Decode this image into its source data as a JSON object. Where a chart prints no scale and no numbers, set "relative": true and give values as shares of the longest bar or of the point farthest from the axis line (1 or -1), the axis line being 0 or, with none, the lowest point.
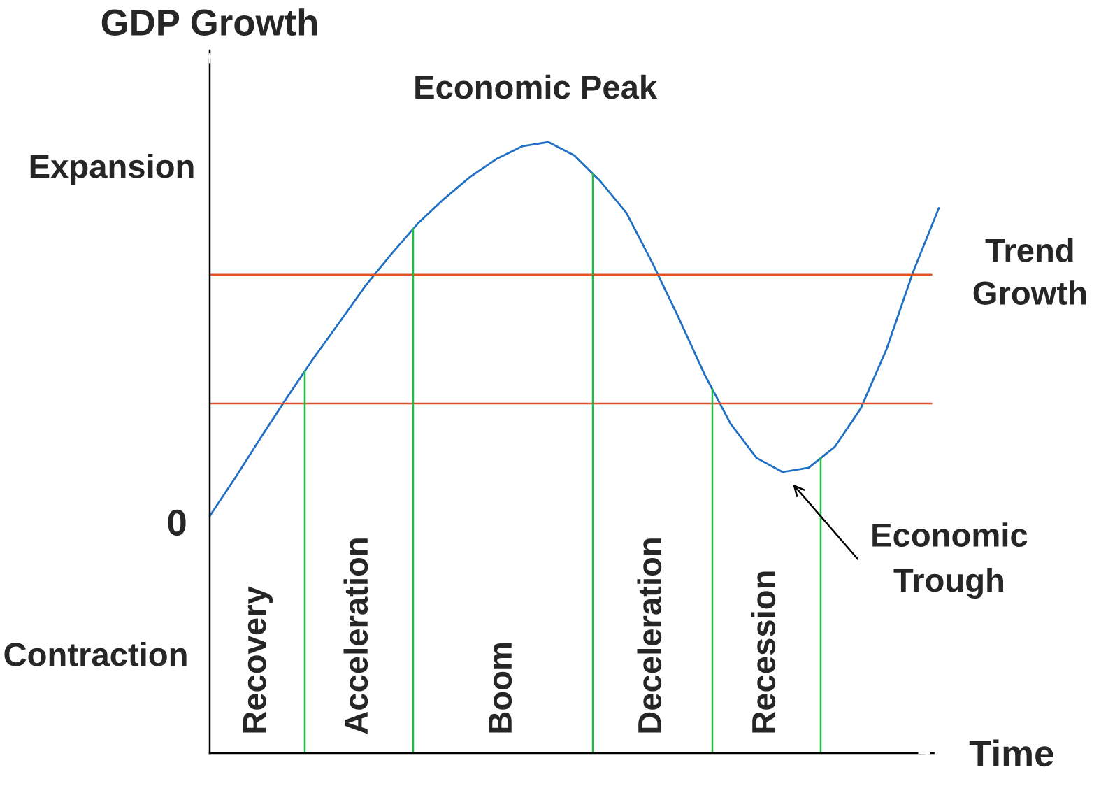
{
  "chart_data": {
    "type": "line",
    "relative": true,
    "xlabel": "Time",
    "ylabel": "GDP Growth",
    "categories": [
      null,
      null,
      null,
      null,
      null,
      null,
      null,
      null,
      null,
      null,
      null,
      null,
      null,
      null,
      null,
      null,
      null,
      null,
      null,
      null,
      null,
      null,
      null,
      null,
      null,
      null,
      null,
      null,
      null
    ],
    "marker": "none",
    "line_style": "solid",
    "series": [
      {
        "color": "#1f6fc4",
        "values": [
          0.388,
          0.452,
          0.519,
          0.584,
          0.647,
          0.706,
          0.766,
          0.818,
          0.867,
          0.907,
          0.943,
          0.972,
          0.993,
          1.0,
          0.978,
          0.936,
          0.884,
          0.802,
          0.713,
          0.62,
          0.539,
          0.483,
          0.46,
          0.467,
          0.501,
          0.564,
          0.662,
          0.786,
          0.892
        ]
      }
    ],
    "ref_lines": [
      {
        "axis": "y",
        "value": 0.783,
        "label": "Trend\nGrowth",
        "color": "#e2541f"
      },
      {
        "axis": "y",
        "value": 0.572,
        "label": null,
        "color": "#e2541f"
      }
    ],
    "annotations": [
      "Economic Peak",
      "Economic\nTrough",
      "0",
      "Expansion",
      "Contraction",
      "Recovery",
      "Acceleration",
      "Boom",
      "Deceleration",
      "Recession"
    ]
  }
}
